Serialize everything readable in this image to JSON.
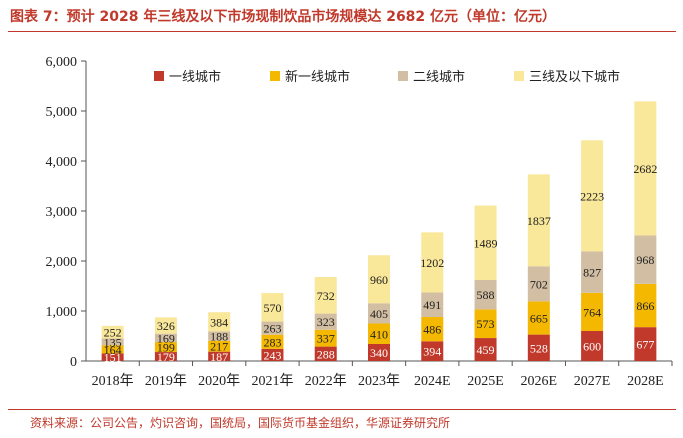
{
  "figure": {
    "title": "图表 7：预计 2028 年三线及以下市场现制饮品市场规模达 2682 亿元（单位：亿元）",
    "source": "资料来源：公司公告，灼识咨询，国统局，国际货币基金组织，华源证券研究所"
  },
  "chart_data": {
    "type": "bar",
    "stacked": true,
    "categories": [
      "2018年",
      "2019年",
      "2020年",
      "2021年",
      "2022年",
      "2023年",
      "2024E",
      "2025E",
      "2026E",
      "2027E",
      "2028E"
    ],
    "series": [
      {
        "name": "一线城市",
        "color": "#c0392b",
        "values": [
          151,
          179,
          187,
          243,
          288,
          340,
          394,
          459,
          528,
          600,
          677
        ]
      },
      {
        "name": "新一线城市",
        "color": "#f5b800",
        "values": [
          164,
          199,
          217,
          283,
          337,
          410,
          486,
          573,
          665,
          764,
          866
        ]
      },
      {
        "name": "二线城市",
        "color": "#d2bfa3",
        "values": [
          135,
          169,
          188,
          263,
          323,
          405,
          491,
          588,
          702,
          827,
          968
        ]
      },
      {
        "name": "三线及以下城市",
        "color": "#f9e79a",
        "values": [
          252,
          326,
          384,
          570,
          732,
          960,
          1202,
          1489,
          1837,
          2223,
          2682
        ]
      }
    ],
    "ylim": [
      0,
      6000
    ],
    "yticks": [
      "0",
      "1,000",
      "2,000",
      "3,000",
      "4,000",
      "5,000",
      "6,000"
    ],
    "data_labels": true,
    "legend_position": "top"
  }
}
